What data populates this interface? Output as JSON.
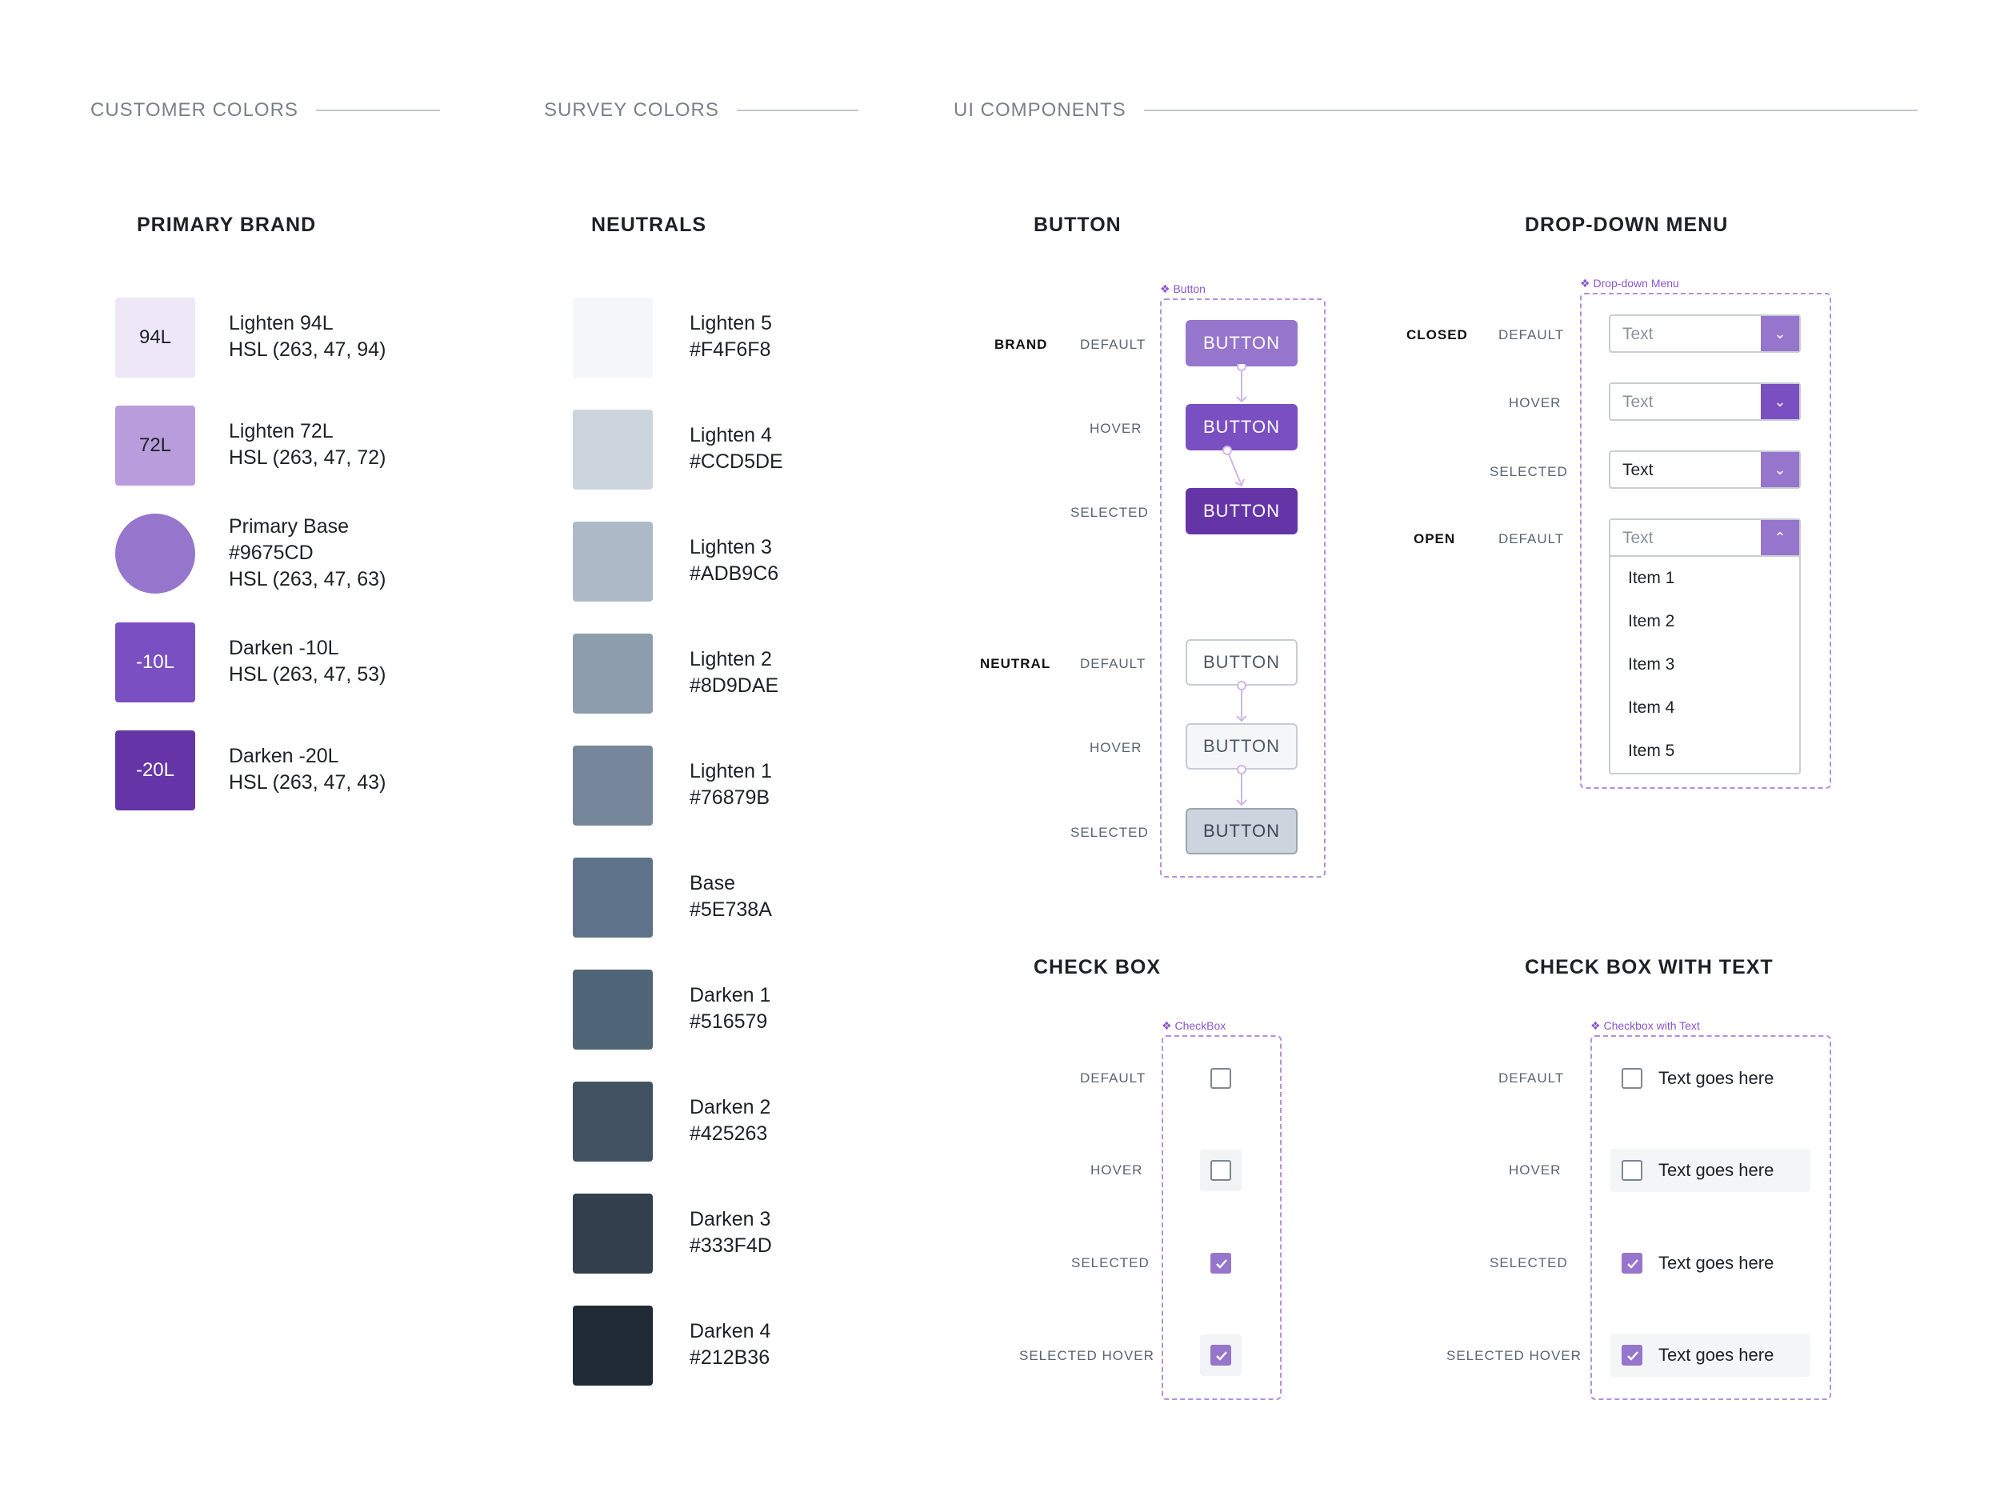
{
  "sections": {
    "customer": "CUSTOMER COLORS",
    "survey": "SURVEY COLORS",
    "ui": "UI COMPONENTS"
  },
  "primary_brand": {
    "title": "PRIMARY BRAND",
    "swatches": [
      {
        "badge": "94L",
        "name": "Lighten 94L",
        "hsl": "HSL (263, 47, 94)",
        "color": "#EEE7F8",
        "text_color": "#1d2125"
      },
      {
        "badge": "72L",
        "name": "Lighten 72L",
        "hsl": "HSL (263, 47, 72)",
        "color": "#B89CDC",
        "text_color": "#1d2125"
      },
      {
        "badge": "",
        "name": "Primary Base",
        "hex": "#9675CD",
        "hsl": "HSL (263, 47, 63)",
        "color": "#9675CD"
      },
      {
        "badge": "-10L",
        "name": "Darken -10L",
        "hsl": "HSL (263, 47, 53)",
        "color": "#7A4FC2",
        "text_color": "#ffffff"
      },
      {
        "badge": "-20L",
        "name": "Darken -20L",
        "hsl": "HSL (263, 47, 43)",
        "color": "#6535A8",
        "text_color": "#ffffff"
      }
    ]
  },
  "neutrals": {
    "title": "NEUTRALS",
    "swatches": [
      {
        "name": "Lighten 5",
        "hex": "#F4F6F8"
      },
      {
        "name": "Lighten 4",
        "hex": "#CCD5DE"
      },
      {
        "name": "Lighten 3",
        "hex": "#ADB9C6"
      },
      {
        "name": "Lighten 2",
        "hex": "#8D9DAE"
      },
      {
        "name": "Lighten 1",
        "hex": "#76879B"
      },
      {
        "name": "Base",
        "hex": "#5E738A"
      },
      {
        "name": "Darken 1",
        "hex": "#516579"
      },
      {
        "name": "Darken 2",
        "hex": "#425263"
      },
      {
        "name": "Darken 3",
        "hex": "#333F4D"
      },
      {
        "name": "Darken 4",
        "hex": "#212B36"
      }
    ]
  },
  "button": {
    "title": "BUTTON",
    "tag": "Button",
    "brand_label": "BRAND",
    "neutral_label": "NEUTRAL",
    "states": [
      "DEFAULT",
      "HOVER",
      "SELECTED"
    ],
    "label": "BUTTON"
  },
  "dropdown": {
    "title": "DROP-DOWN MENU",
    "tag": "Drop-down Menu",
    "closed_label": "CLOSED",
    "open_label": "OPEN",
    "states": [
      "DEFAULT",
      "HOVER",
      "SELECTED",
      "DEFAULT"
    ],
    "text": "Text",
    "items": [
      "Item 1",
      "Item 2",
      "Item 3",
      "Item 4",
      "Item 5"
    ]
  },
  "checkbox": {
    "title": "CHECK BOX",
    "tag": "CheckBox",
    "states": [
      "DEFAULT",
      "HOVER",
      "SELECTED",
      "SELECTED HOVER"
    ]
  },
  "checkbox_text": {
    "title": "CHECK BOX WITH TEXT",
    "tag": "Checkbox with Text",
    "states": [
      "DEFAULT",
      "HOVER",
      "SELECTED",
      "SELECTED HOVER"
    ],
    "text": "Text goes here"
  },
  "colors": {
    "brand": "#9675CD",
    "frame": "#B88EE0"
  }
}
